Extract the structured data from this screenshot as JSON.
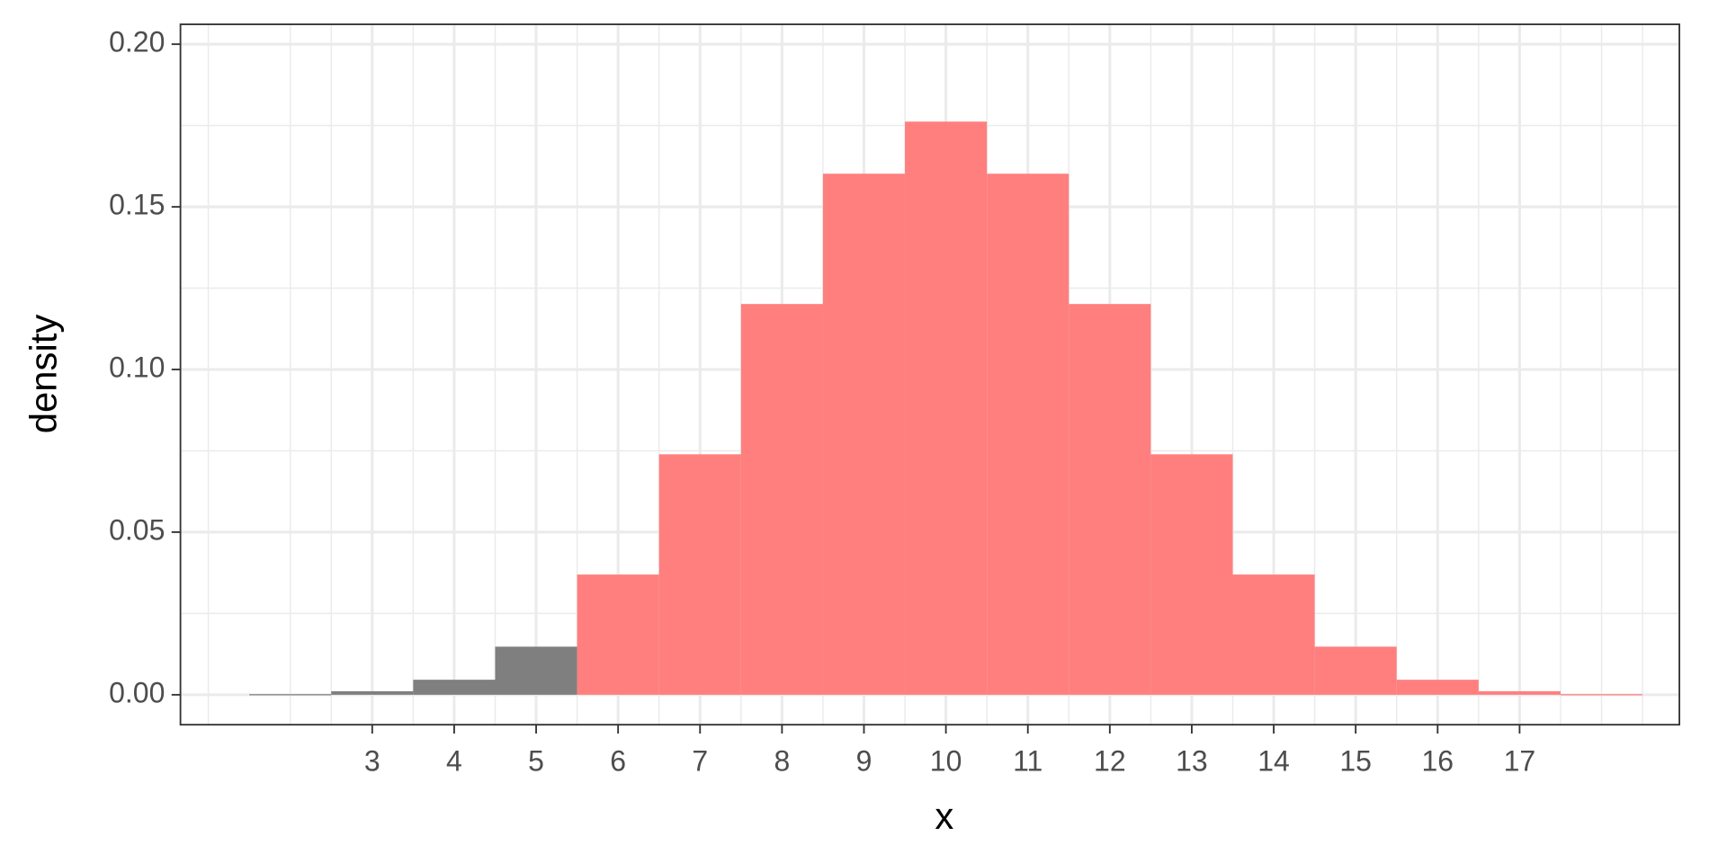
{
  "chart_data": {
    "type": "histogram",
    "x_label": "x",
    "y_label": "density",
    "x": [
      2,
      3,
      4,
      5,
      6,
      7,
      8,
      9,
      10,
      11,
      12,
      13,
      14,
      15,
      16,
      17,
      18
    ],
    "values": [
      0.00018,
      0.00109,
      0.00462,
      0.01479,
      0.03696,
      0.07393,
      0.12013,
      0.16018,
      0.1762,
      0.16018,
      0.12013,
      0.07393,
      0.03696,
      0.01479,
      0.00462,
      0.00109,
      0.00018
    ],
    "colors": [
      "#7f7f7f",
      "#7f7f7f",
      "#7f7f7f",
      "#7f7f7f",
      "#ff7f7f",
      "#ff7f7f",
      "#ff7f7f",
      "#ff7f7f",
      "#ff7f7f",
      "#ff7f7f",
      "#ff7f7f",
      "#ff7f7f",
      "#ff7f7f",
      "#ff7f7f",
      "#ff7f7f",
      "#ff7f7f",
      "#ff7f7f"
    ],
    "xlim": [
      0.66,
      18.95
    ],
    "ylim": [
      -0.0092,
      0.2061
    ],
    "xticks": [
      3,
      4,
      5,
      6,
      7,
      8,
      9,
      10,
      11,
      12,
      13,
      14,
      15,
      16,
      17
    ],
    "yticks": [
      {
        "value": 0,
        "label": "0.00"
      },
      {
        "value": 0.05,
        "label": "0.05"
      },
      {
        "value": 0.1,
        "label": "0.10"
      },
      {
        "value": 0.15,
        "label": "0.15"
      },
      {
        "value": 0.2,
        "label": "0.20"
      }
    ],
    "grid": true
  }
}
